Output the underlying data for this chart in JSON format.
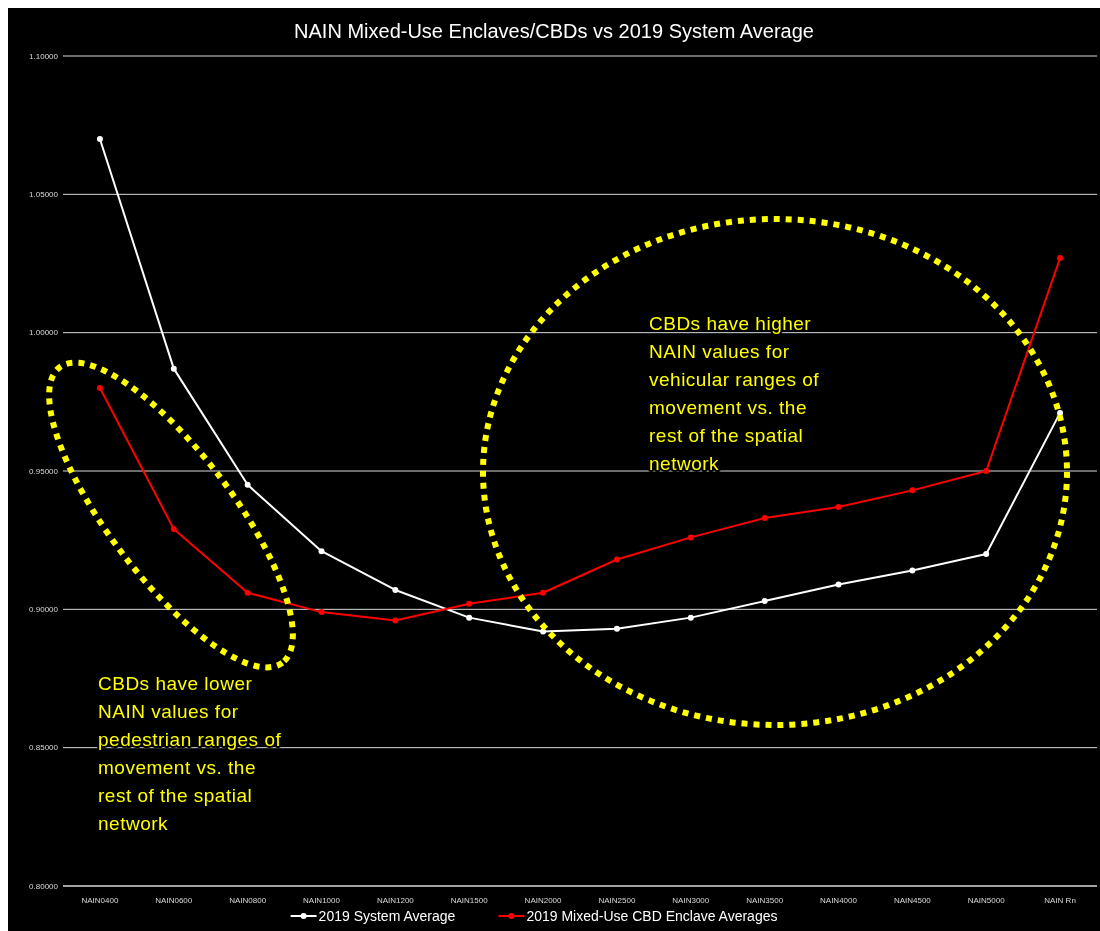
{
  "chart_data": {
    "type": "line",
    "title": "NAIN Mixed-Use Enclaves/CBDs vs 2019 System Average",
    "categories": [
      "NAIN0400",
      "NAIN0600",
      "NAIN0800",
      "NAIN1000",
      "NAIN1200",
      "NAIN1500",
      "NAIN2000",
      "NAIN2500",
      "NAIN3000",
      "NAIN3500",
      "NAIN4000",
      "NAIN4500",
      "NAIN5000",
      "NAIN Rn"
    ],
    "series": [
      {
        "name": "2019 System Average",
        "color": "#ffffff",
        "values": [
          1.07,
          0.987,
          0.945,
          0.921,
          0.907,
          0.897,
          0.892,
          0.893,
          0.897,
          0.903,
          0.909,
          0.914,
          0.92,
          0.971
        ]
      },
      {
        "name": "2019 Mixed-Use CBD Enclave Averages",
        "color": "#ff0000",
        "values": [
          0.98,
          0.929,
          0.906,
          0.899,
          0.896,
          0.902,
          0.906,
          0.918,
          0.926,
          0.933,
          0.937,
          0.943,
          0.95,
          1.027
        ]
      }
    ],
    "ylim": [
      0.8,
      1.1
    ],
    "yticks": [
      {
        "value": 0.8,
        "label": "0.80000"
      },
      {
        "value": 0.85,
        "label": "0.85000"
      },
      {
        "value": 0.9,
        "label": "0.90000"
      },
      {
        "value": 0.95,
        "label": "0.95000"
      },
      {
        "value": 1.0,
        "label": "1.00000"
      },
      {
        "value": 1.05,
        "label": "1.05000"
      },
      {
        "value": 1.1,
        "label": "1.10000"
      }
    ],
    "grid": "y",
    "legend": "bottom",
    "marker": "circle",
    "line_style": "solid",
    "annotations": [
      "CBDs have higher NAIN values for vehicular ranges of movement vs. the rest of the spatial network",
      "CBDs have lower NAIN values for pedestrian ranges of movement vs. the rest of the spatial network"
    ]
  }
}
